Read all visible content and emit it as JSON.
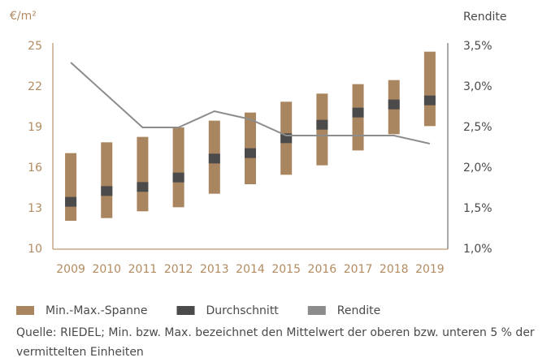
{
  "chart_data": {
    "type": "range-bar-line",
    "y_label": "€/m²",
    "y2_label": "Rendite",
    "categories": [
      "2009",
      "2010",
      "2011",
      "2012",
      "2013",
      "2014",
      "2015",
      "2016",
      "2017",
      "2018",
      "2019"
    ],
    "series": [
      {
        "name": "Min.-Max.-Spanne",
        "color": "#a9865f",
        "min": [
          12.1,
          12.3,
          12.8,
          13.1,
          14.1,
          14.8,
          15.5,
          16.2,
          17.3,
          18.5,
          19.1
        ],
        "max": [
          17.1,
          17.9,
          18.3,
          19.0,
          19.5,
          20.1,
          20.9,
          21.5,
          22.2,
          22.5,
          24.6
        ]
      },
      {
        "name": "Durchschnitt",
        "color": "#4b4b4b",
        "values": [
          13.5,
          14.3,
          14.6,
          15.3,
          16.7,
          17.1,
          18.2,
          19.2,
          20.1,
          20.7,
          21.0
        ]
      },
      {
        "name": "Rendite",
        "color": "#8c8c8c",
        "axis": "y2",
        "values": [
          3.3,
          2.9,
          2.5,
          2.5,
          2.7,
          2.6,
          2.4,
          2.4,
          2.4,
          2.4,
          2.3
        ]
      }
    ],
    "ylim": [
      10,
      25
    ],
    "yticks": [
      10,
      13,
      16,
      19,
      22,
      25
    ],
    "y2lim": [
      1.0,
      3.5
    ],
    "y2ticks": [
      {
        "value": 1.0,
        "label": "1,0%"
      },
      {
        "value": 1.5,
        "label": "1,5%"
      },
      {
        "value": 2.0,
        "label": "2,0%"
      },
      {
        "value": 2.5,
        "label": "2,5%"
      },
      {
        "value": 3.0,
        "label": "3,0%"
      },
      {
        "value": 3.5,
        "label": "3,5%"
      }
    ],
    "grid": false,
    "legend": "bottom-left",
    "note": "Quelle: RIEDEL; Min. bzw. Max. bezeichnet den Mittelwert der oberen bzw. unteren 5 % der vermittelten Einheiten"
  }
}
